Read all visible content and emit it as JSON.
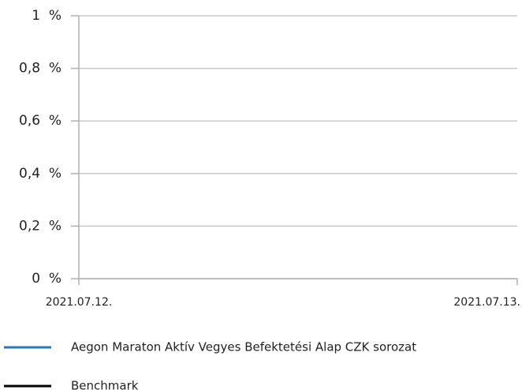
{
  "chart_data": {
    "type": "line",
    "x": [
      "2021.07.12.",
      "2021.07.13."
    ],
    "series": [
      {
        "name": "Aegon Maraton Aktív Vegyes Befektetési Alap CZK sorozat",
        "color": "#2e75b6",
        "values": [
          null,
          null
        ]
      },
      {
        "name": "Benchmark",
        "color": "#000000",
        "values": [
          null,
          null
        ]
      }
    ],
    "ylim": [
      0,
      1
    ],
    "yticks": [
      {
        "value": 0,
        "label": "0  %"
      },
      {
        "value": 0.2,
        "label": "0,2  %"
      },
      {
        "value": 0.4,
        "label": "0,4  %"
      },
      {
        "value": 0.6,
        "label": "0,6  %"
      },
      {
        "value": 0.8,
        "label": "0,8  %"
      },
      {
        "value": 1,
        "label": "1  %"
      }
    ],
    "grid": true
  }
}
